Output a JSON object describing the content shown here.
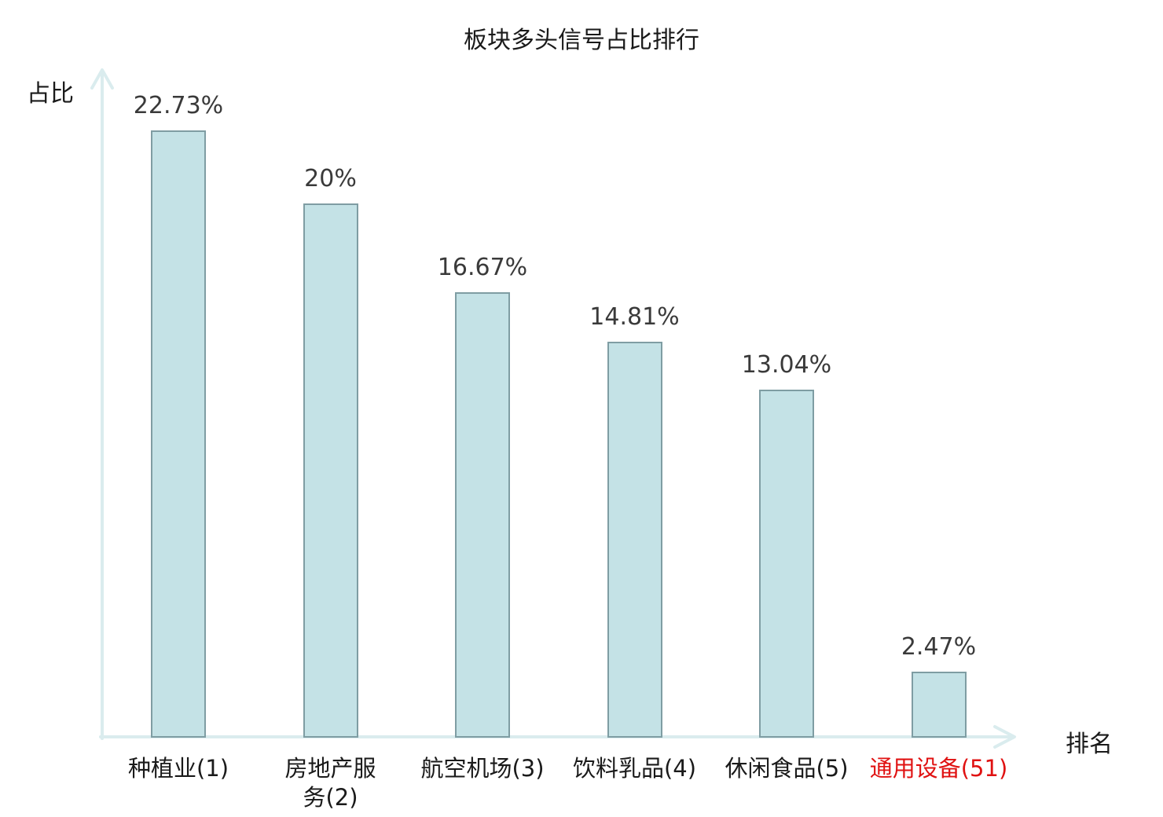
{
  "chart_data": {
    "type": "bar",
    "title": "板块多头信号占比排行",
    "xlabel": "排名",
    "ylabel": "占比",
    "categories": [
      "种植业(1)",
      "房地产服务(2)",
      "航空机场(3)",
      "饮料乳品(4)",
      "休闲食品(5)",
      "通用设备(51)"
    ],
    "values": [
      22.73,
      20,
      16.67,
      14.81,
      13.04,
      2.47
    ],
    "bars": [
      {
        "label": "种植业(1)",
        "label_lines": [
          "种植业(1)"
        ],
        "value": 22.73,
        "display": "22.73%",
        "label_color": "#1a1a1a"
      },
      {
        "label": "房地产服务(2)",
        "label_lines": [
          "房地产服",
          "务(2)"
        ],
        "value": 20,
        "display": "20%",
        "label_color": "#1a1a1a"
      },
      {
        "label": "航空机场(3)",
        "label_lines": [
          "航空机场(3)"
        ],
        "value": 16.67,
        "display": "16.67%",
        "label_color": "#1a1a1a"
      },
      {
        "label": "饮料乳品(4)",
        "label_lines": [
          "饮料乳品(4)"
        ],
        "value": 14.81,
        "display": "14.81%",
        "label_color": "#1a1a1a"
      },
      {
        "label": "休闲食品(5)",
        "label_lines": [
          "休闲食品(5)"
        ],
        "value": 13.04,
        "display": "13.04%",
        "label_color": "#1a1a1a"
      },
      {
        "label": "通用设备(51)",
        "label_lines": [
          "通用设备(51)"
        ],
        "value": 2.47,
        "display": "2.47%",
        "label_color": "#e01212"
      }
    ],
    "grid": false,
    "axis_ticks_visible": false,
    "colors": {
      "bar_fill": "#c4e2e6",
      "bar_border": "#7f9da3",
      "axis": "#daecee",
      "value_label": "#3a3a3a",
      "title_text": "#1a1a1a",
      "highlight_label": "#e01212"
    }
  }
}
